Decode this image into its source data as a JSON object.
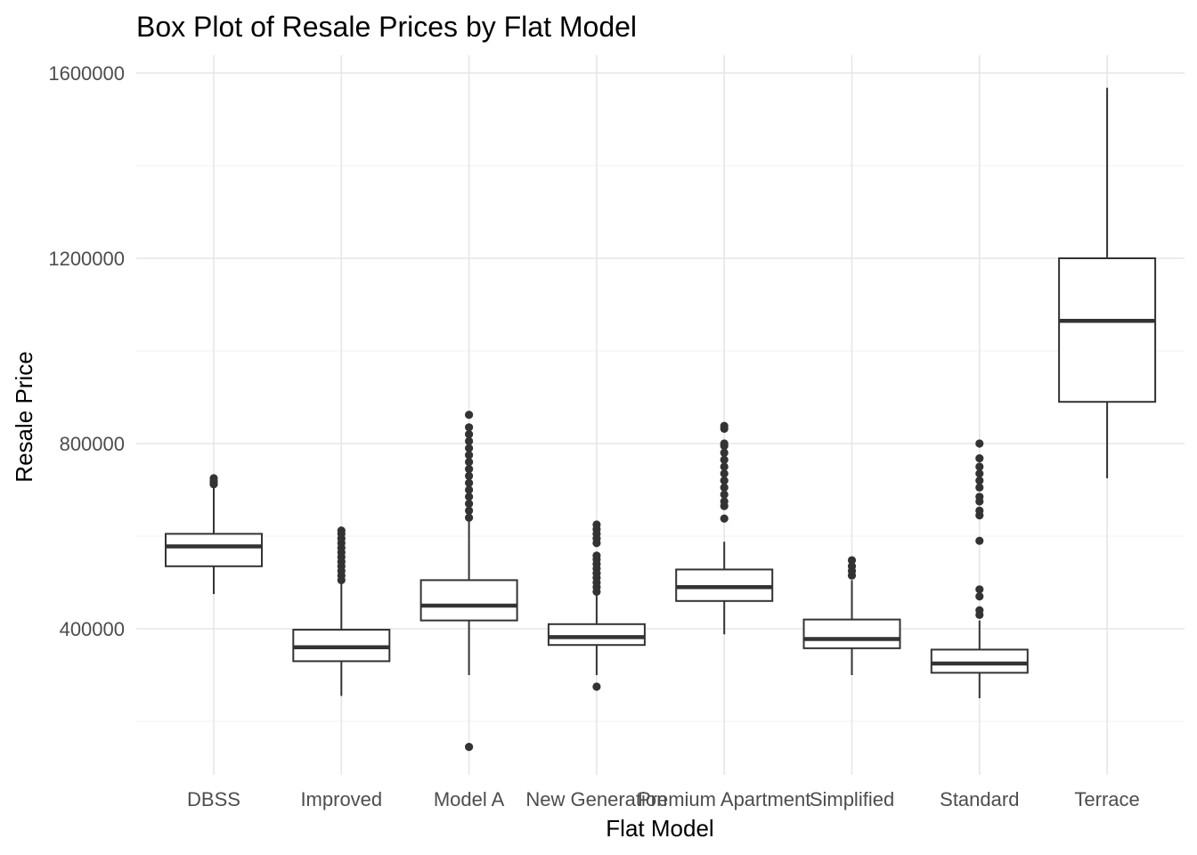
{
  "chart_data": {
    "type": "box",
    "title": "Box Plot of Resale Prices by Flat Model",
    "xlabel": "Flat Model",
    "ylabel": "Resale Price",
    "ylim": [
      100000,
      1650000
    ],
    "yticks": [
      400000,
      800000,
      1200000,
      1600000
    ],
    "y_tick_labels": [
      "400000",
      "800000",
      "1200000",
      "1600000"
    ],
    "grid": "major and minor, light grey",
    "categories": [
      "DBSS",
      "Improved",
      "Model A",
      "New Generation",
      "Premium Apartment",
      "Simplified",
      "Standard",
      "Terrace"
    ],
    "boxes": [
      {
        "category": "DBSS",
        "whisker_low": 475000,
        "q1": 535000,
        "median": 578000,
        "q3": 605000,
        "whisker_high": 705000,
        "outliers": [
          712000,
          718000,
          725000
        ]
      },
      {
        "category": "Improved",
        "whisker_low": 255000,
        "q1": 330000,
        "median": 360000,
        "q3": 398000,
        "whisker_high": 500000,
        "outliers": [
          505000,
          515000,
          525000,
          535000,
          545000,
          555000,
          565000,
          575000,
          585000,
          595000,
          605000,
          612000
        ]
      },
      {
        "category": "Model A",
        "whisker_low": 300000,
        "q1": 418000,
        "median": 450000,
        "q3": 505000,
        "whisker_high": 635000,
        "outliers": [
          145000,
          640000,
          655000,
          670000,
          685000,
          700000,
          715000,
          730000,
          745000,
          760000,
          775000,
          790000,
          805000,
          820000,
          835000,
          862000
        ]
      },
      {
        "category": "New Generation",
        "whisker_low": 300000,
        "q1": 365000,
        "median": 382000,
        "q3": 410000,
        "whisker_high": 475000,
        "outliers": [
          275000,
          480000,
          490000,
          500000,
          510000,
          520000,
          530000,
          540000,
          550000,
          558000,
          585000,
          595000,
          605000,
          615000,
          625000
        ]
      },
      {
        "category": "Premium Apartment",
        "whisker_low": 388000,
        "q1": 460000,
        "median": 490000,
        "q3": 528000,
        "whisker_high": 588000,
        "outliers": [
          638000,
          665000,
          675000,
          690000,
          705000,
          720000,
          735000,
          750000,
          765000,
          780000,
          795000,
          800000,
          832000,
          838000
        ]
      },
      {
        "category": "Simplified",
        "whisker_low": 300000,
        "q1": 358000,
        "median": 378000,
        "q3": 420000,
        "whisker_high": 505000,
        "outliers": [
          515000,
          525000,
          535000,
          548000
        ]
      },
      {
        "category": "Standard",
        "whisker_low": 250000,
        "q1": 305000,
        "median": 325000,
        "q3": 355000,
        "whisker_high": 418000,
        "outliers": [
          430000,
          440000,
          470000,
          485000,
          590000,
          645000,
          655000,
          675000,
          685000,
          705000,
          720000,
          735000,
          750000,
          768000,
          800000
        ]
      },
      {
        "category": "Terrace",
        "whisker_low": 725000,
        "q1": 890000,
        "median": 1065000,
        "q3": 1200000,
        "whisker_high": 1568000,
        "outliers": []
      }
    ]
  }
}
